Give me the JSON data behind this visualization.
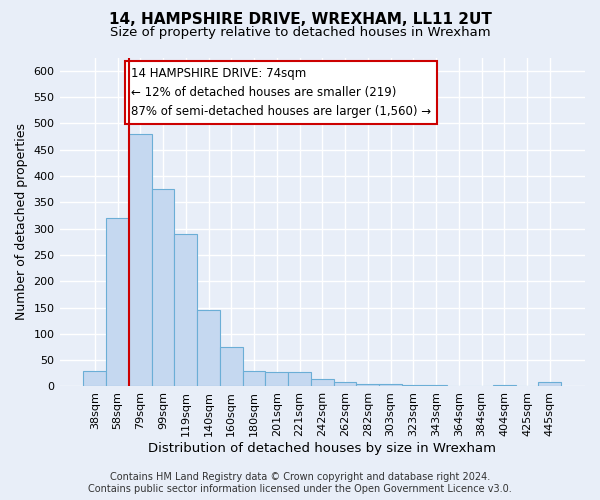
{
  "title_line1": "14, HAMPSHIRE DRIVE, WREXHAM, LL11 2UT",
  "title_line2": "Size of property relative to detached houses in Wrexham",
  "xlabel": "Distribution of detached houses by size in Wrexham",
  "ylabel": "Number of detached properties",
  "bar_values": [
    30,
    320,
    480,
    375,
    290,
    145,
    75,
    30,
    28,
    28,
    15,
    8,
    5,
    5,
    3,
    3,
    0,
    0,
    3,
    0,
    8
  ],
  "bar_labels": [
    "38sqm",
    "58sqm",
    "79sqm",
    "99sqm",
    "119sqm",
    "140sqm",
    "160sqm",
    "180sqm",
    "201sqm",
    "221sqm",
    "242sqm",
    "262sqm",
    "282sqm",
    "303sqm",
    "323sqm",
    "343sqm",
    "364sqm",
    "384sqm",
    "404sqm",
    "425sqm",
    "445sqm"
  ],
  "bar_color": "#c5d8f0",
  "bar_edge_color": "#6baed6",
  "vline_x": 1.5,
  "vline_color": "#cc0000",
  "annotation_text": "14 HAMPSHIRE DRIVE: 74sqm\n← 12% of detached houses are smaller (219)\n87% of semi-detached houses are larger (1,560) →",
  "annotation_box_facecolor": "white",
  "annotation_box_edgecolor": "#cc0000",
  "ylim": [
    0,
    625
  ],
  "yticks": [
    0,
    50,
    100,
    150,
    200,
    250,
    300,
    350,
    400,
    450,
    500,
    550,
    600
  ],
  "footer_line1": "Contains HM Land Registry data © Crown copyright and database right 2024.",
  "footer_line2": "Contains public sector information licensed under the Open Government Licence v3.0.",
  "bg_color": "#e8eef8",
  "title_fontsize": 11,
  "subtitle_fontsize": 9.5,
  "ylabel_fontsize": 9,
  "xlabel_fontsize": 9.5,
  "tick_fontsize": 8,
  "annotation_fontsize": 8.5,
  "footer_fontsize": 7
}
